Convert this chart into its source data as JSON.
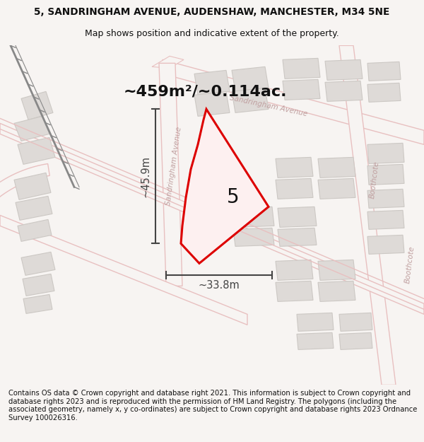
{
  "title_line1": "5, SANDRINGHAM AVENUE, AUDENSHAW, MANCHESTER, M34 5NE",
  "title_line2": "Map shows position and indicative extent of the property.",
  "area_label": "~459m²/~0.114ac.",
  "width_label": "~33.8m",
  "height_label": "~45.9m",
  "number_label": "5",
  "footer_text": "Contains OS data © Crown copyright and database right 2021. This information is subject to Crown copyright and database rights 2023 and is reproduced with the permission of HM Land Registry. The polygons (including the associated geometry, namely x, y co-ordinates) are subject to Crown copyright and database rights 2023 Ordnance Survey 100026316.",
  "bg_color": "#f7f4f2",
  "map_bg": "#f7f4f2",
  "road_stroke": "#e8c0c0",
  "block_fill": "#dedad7",
  "block_edge": "#ccc8c4",
  "plot_edge": "#dd0000",
  "plot_fill": "#fdf0f0",
  "dim_color": "#444444",
  "text_color": "#111111",
  "road_label_color": "#c0a0a0",
  "rail_color": "#888888",
  "title_fontsize": 9.8,
  "subtitle_fontsize": 9.0,
  "area_fontsize": 16,
  "dim_fontsize": 10.5,
  "number_fontsize": 20,
  "footer_fontsize": 7.2,
  "road_label_fontsize": 7.5
}
